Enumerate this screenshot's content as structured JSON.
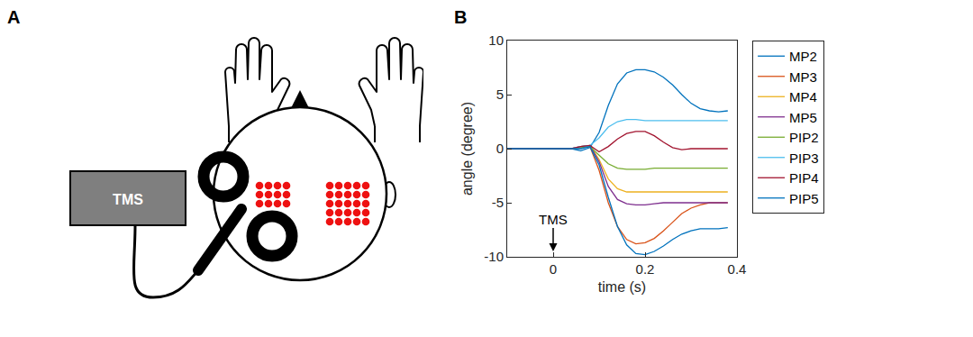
{
  "diagram": {
    "label": "A",
    "device": "TMS"
  },
  "chart_label": "B",
  "chart_data": {
    "type": "line",
    "x_label": "time (s)",
    "y_label": "angle (degree)",
    "xlim": [
      -0.1,
      0.4
    ],
    "xticks": [
      0,
      0.2,
      0.4
    ],
    "ylim": [
      -10,
      10
    ],
    "yticks": [
      -10,
      -5,
      0,
      5,
      10
    ],
    "grid": false,
    "legend": "outside right",
    "annotations": [
      {
        "text": "TMS",
        "x": 0,
        "y": -9.5
      }
    ],
    "x": [
      -0.1,
      -0.08,
      -0.06,
      -0.04,
      -0.02,
      0,
      0.02,
      0.04,
      0.06,
      0.08,
      0.1,
      0.12,
      0.14,
      0.16,
      0.18,
      0.2,
      0.22,
      0.24,
      0.26,
      0.28,
      0.3,
      0.32,
      0.34,
      0.36,
      0.38
    ],
    "series": [
      {
        "name": "MP2",
        "color": "#0072BD",
        "values": [
          0,
          0,
          0,
          0,
          0,
          0,
          0,
          0,
          -0.2,
          0.1,
          1.5,
          4.0,
          6.0,
          7.0,
          7.3,
          7.3,
          7.1,
          6.6,
          5.9,
          5.0,
          4.2,
          3.7,
          3.5,
          3.4,
          3.5
        ]
      },
      {
        "name": "MP3",
        "color": "#D95319",
        "values": [
          0,
          0,
          0,
          0,
          0,
          0,
          0,
          0,
          0.1,
          0.2,
          -2.0,
          -5.0,
          -7.2,
          -8.4,
          -8.8,
          -8.7,
          -8.3,
          -7.6,
          -6.8,
          -6.0,
          -5.5,
          -5.2,
          -5.0,
          -5.0,
          -5.0
        ]
      },
      {
        "name": "MP4",
        "color": "#EDB120",
        "values": [
          0,
          0,
          0,
          0,
          0,
          0,
          0,
          0,
          0.2,
          0.3,
          -1.0,
          -2.8,
          -3.7,
          -4.0,
          -4.0,
          -4.0,
          -4.0,
          -4.0,
          -4.0,
          -4.0,
          -4.0,
          -4.0,
          -4.0,
          -4.0,
          -4.0
        ]
      },
      {
        "name": "MP5",
        "color": "#7E2F8E",
        "values": [
          0,
          0,
          0,
          0,
          0,
          0,
          0,
          0,
          0.2,
          0.3,
          -1.2,
          -3.5,
          -4.7,
          -5.1,
          -5.2,
          -5.2,
          -5.1,
          -5.0,
          -5.0,
          -5.0,
          -5.0,
          -5.0,
          -5.0,
          -5.0,
          -5.0
        ]
      },
      {
        "name": "PIP2",
        "color": "#77AC30",
        "values": [
          0,
          0,
          0,
          0,
          0,
          0,
          0,
          0,
          0.1,
          0.2,
          -0.6,
          -1.4,
          -1.8,
          -1.9,
          -1.9,
          -1.9,
          -1.8,
          -1.8,
          -1.8,
          -1.8,
          -1.8,
          -1.8,
          -1.8,
          -1.8,
          -1.8
        ]
      },
      {
        "name": "PIP3",
        "color": "#4DBEEE",
        "values": [
          0,
          0,
          0,
          0,
          0,
          0,
          0,
          0,
          0.2,
          0.3,
          1.0,
          2.0,
          2.5,
          2.7,
          2.7,
          2.6,
          2.6,
          2.6,
          2.6,
          2.6,
          2.6,
          2.6,
          2.6,
          2.6,
          2.6
        ]
      },
      {
        "name": "PIP4",
        "color": "#A2142F",
        "values": [
          0,
          0,
          0,
          0,
          0,
          0,
          0,
          0,
          0.2,
          0.3,
          -0.3,
          0.2,
          0.9,
          1.4,
          1.6,
          1.6,
          1.2,
          0.6,
          0.1,
          -0.1,
          0,
          0,
          0,
          0,
          0
        ]
      },
      {
        "name": "PIP5",
        "color": "#0072BD",
        "values": [
          0,
          0,
          0,
          0,
          0,
          0,
          0,
          0,
          0,
          0.2,
          -1.5,
          -4.5,
          -7.2,
          -8.9,
          -9.7,
          -9.8,
          -9.5,
          -9.0,
          -8.4,
          -7.9,
          -7.6,
          -7.4,
          -7.4,
          -7.4,
          -7.3
        ]
      }
    ]
  }
}
